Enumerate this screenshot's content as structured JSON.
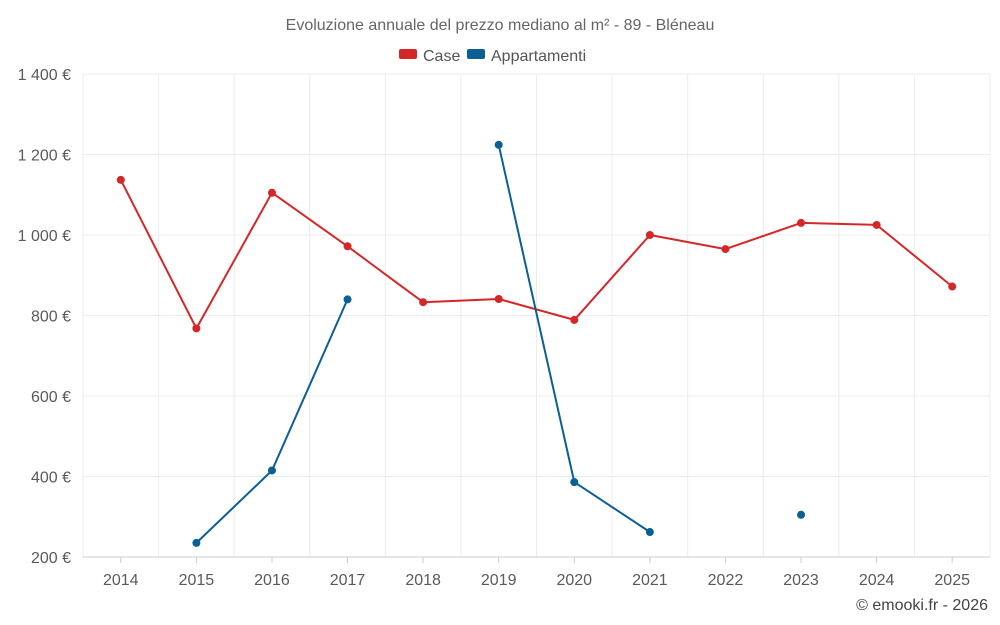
{
  "chart_data": {
    "type": "line",
    "title": "Evoluzione annuale del prezzo mediano al m² - 89 - Bléneau",
    "categories": [
      "2014",
      "2015",
      "2016",
      "2017",
      "2018",
      "2019",
      "2020",
      "2021",
      "2022",
      "2023",
      "2024",
      "2025"
    ],
    "series": [
      {
        "name": "Case",
        "color": "#d62728",
        "values": [
          1137,
          768,
          1105,
          972,
          833,
          841,
          789,
          1000,
          965,
          1030,
          1025,
          872
        ]
      },
      {
        "name": "Appartamenti",
        "color": "#0b5f95",
        "values": [
          null,
          235,
          415,
          840,
          null,
          1224,
          386,
          262,
          null,
          305,
          null,
          null
        ]
      }
    ],
    "ylim": [
      200,
      1400
    ],
    "yticks": [
      200,
      400,
      600,
      800,
      1000,
      1200,
      1400
    ],
    "ytick_labels": [
      "200 €",
      "400 €",
      "600 €",
      "800 €",
      "1 000 €",
      "1 200 €",
      "1 400 €"
    ],
    "grid": true,
    "legend_position": "top-center"
  },
  "credit": "© emooki.fr - 2026"
}
